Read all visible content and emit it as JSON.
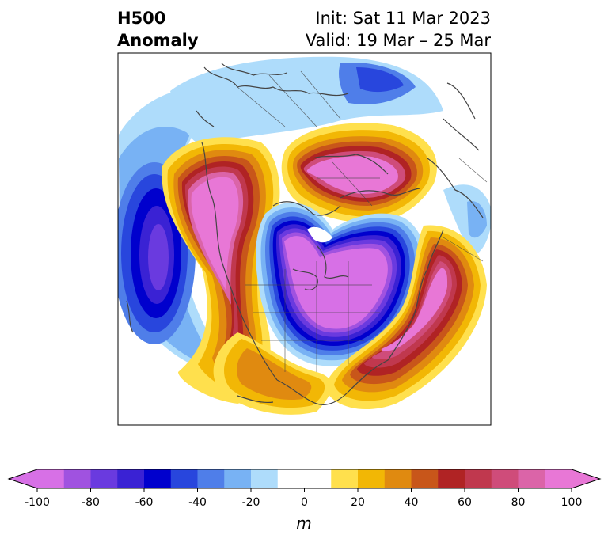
{
  "title": {
    "left_line1": "H500",
    "left_line2": "Anomaly",
    "right_line1": "Init: Sat 11 Mar 2023",
    "right_line2": "Valid: 19 Mar – 25 Mar"
  },
  "colorbar": {
    "unit": "m",
    "ticks": [
      "-100",
      "-80",
      "-60",
      "-40",
      "-20",
      "0",
      "20",
      "40",
      "60",
      "80",
      "100"
    ],
    "tick_values": [
      -100,
      -80,
      -60,
      -40,
      -20,
      0,
      20,
      40,
      60,
      80,
      100
    ],
    "range": [
      -100,
      100
    ],
    "extend": "both",
    "colors": [
      "#d770e6",
      "#a052e0",
      "#6a3adf",
      "#3a22d4",
      "#0000cd",
      "#2846dd",
      "#4f7ee9",
      "#78b2f4",
      "#aedcfb",
      "#ffffff",
      "#ffffff",
      "#ffe04d",
      "#f2b705",
      "#e08a10",
      "#c8561a",
      "#b02324",
      "#c0384e",
      "#cf4c7a",
      "#db64a8",
      "#e877d6"
    ]
  },
  "colors": {
    "strong_positive": "#e877d6",
    "strong_negative": "#d770e6",
    "coastline": "#444444"
  }
}
